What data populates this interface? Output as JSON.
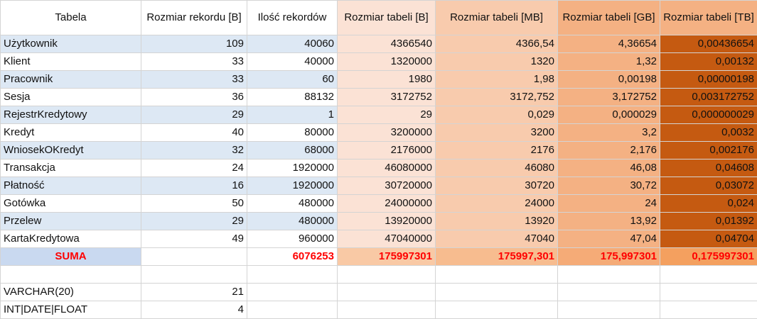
{
  "headers": [
    "Tabela",
    "Rozmiar rekordu [B]",
    "Ilość rekordów",
    "Rozmiar tabeli [B]",
    "Rozmiar tabeli [MB]",
    "Rozmiar tabeli [GB]",
    "Rozmiar tabeli [TB]"
  ],
  "rows": [
    [
      "Użytkownik",
      "109",
      "40060",
      "4366540",
      "4366,54",
      "4,36654",
      "0,00436654"
    ],
    [
      "Klient",
      "33",
      "40000",
      "1320000",
      "1320",
      "1,32",
      "0,00132"
    ],
    [
      "Pracownik",
      "33",
      "60",
      "1980",
      "1,98",
      "0,00198",
      "0,00000198"
    ],
    [
      "Sesja",
      "36",
      "88132",
      "3172752",
      "3172,752",
      "3,172752",
      "0,003172752"
    ],
    [
      "RejestrKredytowy",
      "29",
      "1",
      "29",
      "0,029",
      "0,000029",
      "0,000000029"
    ],
    [
      "Kredyt",
      "40",
      "80000",
      "3200000",
      "3200",
      "3,2",
      "0,0032"
    ],
    [
      "WniosekOKredyt",
      "32",
      "68000",
      "2176000",
      "2176",
      "2,176",
      "0,002176"
    ],
    [
      "Transakcja",
      "24",
      "1920000",
      "46080000",
      "46080",
      "46,08",
      "0,04608"
    ],
    [
      "Płatność",
      "16",
      "1920000",
      "30720000",
      "30720",
      "30,72",
      "0,03072"
    ],
    [
      "Gotówka",
      "50",
      "480000",
      "24000000",
      "24000",
      "24",
      "0,024"
    ],
    [
      "Przelew",
      "29",
      "480000",
      "13920000",
      "13920",
      "13,92",
      "0,01392"
    ],
    [
      "KartaKredytowa",
      "49",
      "960000",
      "47040000",
      "47040",
      "47,04",
      "0,04704"
    ]
  ],
  "sum": [
    "SUMA",
    "",
    "6076253",
    "175997301",
    "175997,301",
    "175,997301",
    "0,175997301"
  ],
  "extra": [
    [
      "VARCHAR(20)",
      "21"
    ],
    [
      "INT|DATE|FLOAT",
      "4"
    ]
  ]
}
